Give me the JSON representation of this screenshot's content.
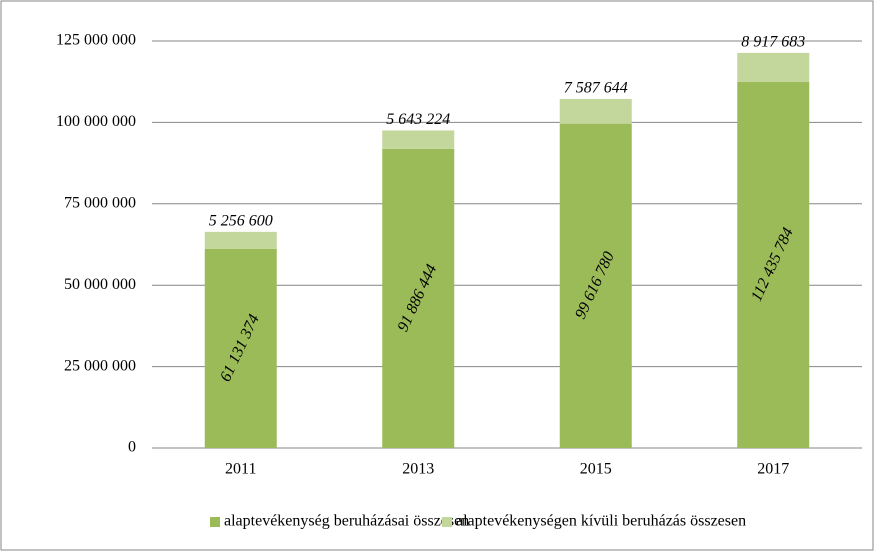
{
  "chart_data": {
    "type": "stacked_bar",
    "categories": [
      "2011",
      "2013",
      "2015",
      "2017"
    ],
    "series": [
      {
        "name": "alaptevékenység beruházásai összesen",
        "color": "#9bbb59",
        "values": [
          61131374,
          91886444,
          99616780,
          112435784
        ],
        "value_labels": [
          "61 131 374",
          "91 886 444",
          "99 616 780",
          "112 435 784"
        ]
      },
      {
        "name": "alaptevékenységen kívüli beruházás összesen",
        "color": "#c3d69b",
        "values": [
          5256600,
          5643224,
          7587644,
          8917683
        ],
        "value_labels": [
          "5 256 600",
          "5 643 224",
          "7 587 644",
          "8 917 683"
        ]
      }
    ],
    "ylim": [
      0,
      125000000
    ],
    "yticks": [
      0,
      {
        "value": 25000000,
        "label": "25 000 000"
      },
      {
        "value": 50000000,
        "label": "50 000 000"
      },
      {
        "value": 75000000,
        "label": "75 000 000"
      },
      {
        "value": 100000000,
        "label": "100 000 000"
      },
      {
        "value": 125000000,
        "label": "125 000 000"
      }
    ],
    "grid": true,
    "legend": "bottom"
  }
}
